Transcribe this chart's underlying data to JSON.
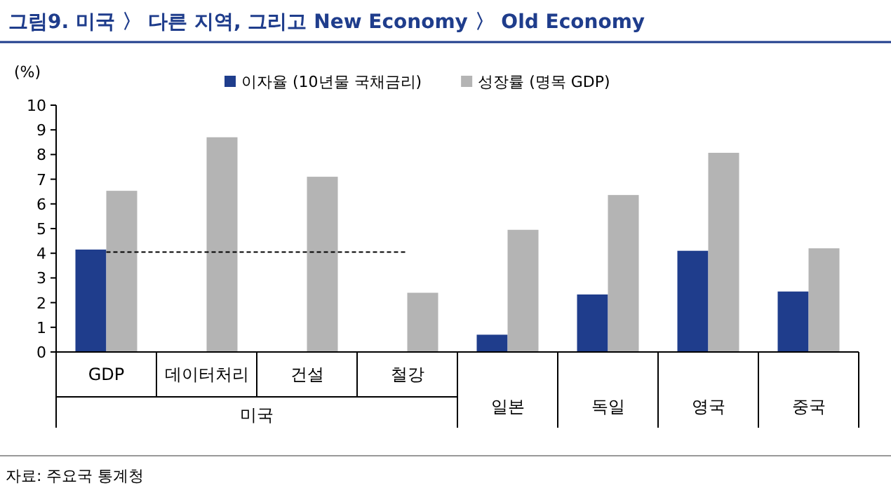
{
  "chart_data": {
    "type": "bar",
    "title": "그림9. 미국 〉 다른 지역, 그리고 New Economy 〉 Old Economy",
    "ylabel": "(%)",
    "categories": [
      "GDP",
      "데이터처리",
      "건설",
      "철강",
      "일본",
      "독일",
      "영국",
      "중국"
    ],
    "series": [
      {
        "name": "이자율 (10년물 국채금리)",
        "color": "#1f3d8c",
        "values": [
          4.15,
          null,
          null,
          null,
          0.7,
          2.33,
          4.1,
          2.45
        ]
      },
      {
        "name": "성장률 (명목 GDP)",
        "color": "#b4b4b4",
        "values": [
          6.53,
          8.7,
          7.1,
          2.4,
          4.95,
          6.36,
          8.07,
          4.2
        ]
      },
      {
        "type": "line",
        "color": "#000000",
        "line_style": "dashed",
        "values": [
          4.05,
          4.05,
          4.05,
          4.05,
          null,
          null,
          null,
          null
        ]
      }
    ],
    "ylim": [
      0,
      10
    ],
    "yticks": [
      0,
      1,
      2,
      3,
      4,
      5,
      6,
      7,
      8,
      9,
      10
    ],
    "grid": false,
    "legend": "top",
    "annotations": [
      "미국",
      "자료: 주요국 통계청"
    ]
  }
}
